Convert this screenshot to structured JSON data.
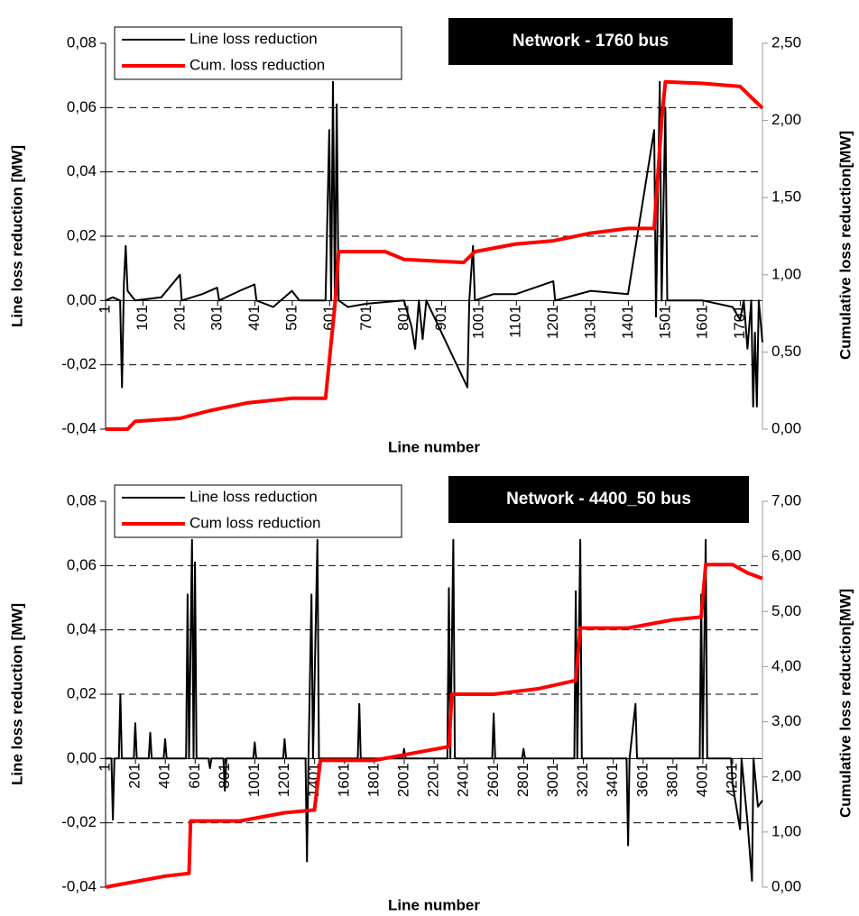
{
  "chart_data": [
    {
      "type": "line",
      "title": "Network - 1760 bus",
      "x_label": "Line number",
      "y_label": "Line loss reduction [MW]",
      "y2_label": "Cumulative loss reduction[MW]",
      "xlim": [
        1,
        1760
      ],
      "xticks": [
        1,
        101,
        201,
        301,
        401,
        501,
        601,
        701,
        801,
        901,
        1001,
        1101,
        1201,
        1301,
        1401,
        1501,
        1601,
        1701
      ],
      "ylim": [
        -0.04,
        0.08
      ],
      "yticks": [
        {
          "value": -0.04,
          "label": "-0,04"
        },
        {
          "value": -0.02,
          "label": "-0,02"
        },
        {
          "value": 0,
          "label": "0,00"
        },
        {
          "value": 0.02,
          "label": "0,02"
        },
        {
          "value": 0.04,
          "label": "0,04"
        },
        {
          "value": 0.06,
          "label": "0,06"
        },
        {
          "value": 0.08,
          "label": "0,08"
        }
      ],
      "y2lim": [
        0,
        2.5
      ],
      "y2ticks": [
        {
          "value": 0,
          "label": "0,00"
        },
        {
          "value": 0.5,
          "label": "0,50"
        },
        {
          "value": 1,
          "label": "1,00"
        },
        {
          "value": 1.5,
          "label": "1,50"
        },
        {
          "value": 2,
          "label": "2,00"
        },
        {
          "value": 2.5,
          "label": "2,50"
        }
      ],
      "grid": true,
      "series": [
        {
          "name": "Line loss reduction",
          "color": "#000000",
          "x": [
            1,
            20,
            40,
            45,
            50,
            55,
            60,
            80,
            150,
            200,
            205,
            260,
            300,
            305,
            360,
            400,
            405,
            450,
            500,
            520,
            590,
            600,
            605,
            610,
            615,
            620,
            625,
            650,
            700,
            800,
            820,
            830,
            840,
            850,
            860,
            970,
            975,
            985,
            990,
            1040,
            1100,
            1150,
            1200,
            1205,
            1300,
            1400,
            1470,
            1475,
            1485,
            1490,
            1500,
            1505,
            1600,
            1680,
            1700,
            1710,
            1720,
            1730,
            1735,
            1740,
            1745,
            1750,
            1760
          ],
          "values": [
            0,
            0.001,
            0,
            -0.027,
            0.005,
            0.017,
            0.003,
            0,
            0.001,
            0.008,
            0,
            0.002,
            0.004,
            0,
            0.003,
            0.005,
            0,
            -0.002,
            0.003,
            0,
            0,
            0.053,
            0,
            0.068,
            0,
            0.061,
            0,
            -0.002,
            -0.001,
            0,
            -0.008,
            -0.015,
            0,
            -0.012,
            0,
            -0.027,
            0,
            0.017,
            0,
            0.002,
            0.002,
            0.004,
            0.006,
            0,
            0.003,
            0.002,
            0.053,
            -0.005,
            0.068,
            0,
            0.06,
            0,
            0,
            -0.002,
            -0.006,
            0,
            -0.015,
            0,
            -0.033,
            -0.01,
            -0.033,
            0,
            -0.013
          ]
        },
        {
          "name": "Cum. loss reduction",
          "color": "#ff0000",
          "axis": "y2",
          "x": [
            1,
            60,
            80,
            200,
            280,
            380,
            500,
            590,
            615,
            625,
            750,
            800,
            960,
            990,
            1100,
            1200,
            1300,
            1400,
            1470,
            1490,
            1500,
            1600,
            1700,
            1760
          ],
          "values": [
            0,
            0,
            0.05,
            0.07,
            0.12,
            0.17,
            0.2,
            0.2,
            0.8,
            1.15,
            1.15,
            1.1,
            1.08,
            1.15,
            1.2,
            1.22,
            1.27,
            1.3,
            1.3,
            2.0,
            2.25,
            2.24,
            2.22,
            2.08
          ]
        }
      ]
    },
    {
      "type": "line",
      "title": "Network - 4400_50 bus",
      "x_label": "Line number",
      "y_label": "Line loss reduction [MW]",
      "y2_label": "Cumulative loss reduction[MW]",
      "xlim": [
        1,
        4400
      ],
      "xticks": [
        1,
        201,
        401,
        601,
        801,
        1001,
        1201,
        1401,
        1601,
        1801,
        2001,
        2201,
        2401,
        2601,
        2801,
        3001,
        3201,
        3401,
        3601,
        3801,
        4001,
        4201
      ],
      "ylim": [
        -0.04,
        0.08
      ],
      "yticks": [
        {
          "value": -0.04,
          "label": "-0,04"
        },
        {
          "value": -0.02,
          "label": "-0,02"
        },
        {
          "value": 0,
          "label": "0,00"
        },
        {
          "value": 0.02,
          "label": "0,02"
        },
        {
          "value": 0.04,
          "label": "0,04"
        },
        {
          "value": 0.06,
          "label": "0,06"
        },
        {
          "value": 0.08,
          "label": "0,08"
        }
      ],
      "y2lim": [
        0,
        7
      ],
      "y2ticks": [
        {
          "value": 0,
          "label": "0,00"
        },
        {
          "value": 1,
          "label": "1,00"
        },
        {
          "value": 2,
          "label": "2,00"
        },
        {
          "value": 3,
          "label": "3,00"
        },
        {
          "value": 4,
          "label": "4,00"
        },
        {
          "value": 5,
          "label": "5,00"
        },
        {
          "value": 6,
          "label": "6,00"
        },
        {
          "value": 7,
          "label": "7,00"
        }
      ],
      "grid": true,
      "series": [
        {
          "name": "Line loss reduction",
          "color": "#000000",
          "x": [
            1,
            40,
            50,
            60,
            90,
            100,
            110,
            190,
            200,
            210,
            290,
            300,
            310,
            390,
            400,
            410,
            540,
            550,
            560,
            580,
            590,
            600,
            610,
            690,
            700,
            710,
            790,
            800,
            810,
            990,
            1000,
            1010,
            1190,
            1200,
            1210,
            1340,
            1350,
            1360,
            1380,
            1390,
            1420,
            1430,
            1690,
            1700,
            1710,
            1990,
            2000,
            2010,
            2290,
            2300,
            2310,
            2330,
            2340,
            2590,
            2600,
            2610,
            2790,
            2800,
            2810,
            3140,
            3150,
            3160,
            3180,
            3190,
            3490,
            3500,
            3510,
            3550,
            3560,
            3980,
            3990,
            4000,
            4020,
            4030,
            4190,
            4200,
            4250,
            4260,
            4300,
            4330,
            4340,
            4370,
            4400
          ],
          "values": [
            0,
            0,
            -0.019,
            0,
            0,
            0.02,
            0,
            0,
            0.011,
            0,
            0,
            0.008,
            0,
            0,
            0.006,
            0,
            0,
            0.051,
            0,
            0.068,
            0,
            0.061,
            0,
            0,
            -0.003,
            0,
            0,
            -0.01,
            0,
            0,
            0.005,
            0,
            0,
            0.006,
            0,
            0,
            -0.032,
            0,
            0.051,
            0,
            0.068,
            0,
            0,
            0.017,
            0,
            0,
            0.003,
            0,
            0,
            0.053,
            0,
            0.068,
            0,
            0,
            0.014,
            0,
            0,
            0.003,
            0,
            0,
            0.052,
            0,
            0.068,
            0,
            0,
            -0.027,
            0,
            0.017,
            0,
            0,
            0.051,
            0,
            0.068,
            0,
            0,
            -0.008,
            -0.022,
            0,
            -0.02,
            -0.038,
            0,
            -0.015,
            -0.013
          ]
        },
        {
          "name": "Cum loss reduction",
          "color": "#ff0000",
          "axis": "y2",
          "x": [
            1,
            100,
            400,
            560,
            570,
            900,
            1200,
            1400,
            1440,
            1800,
            2100,
            2300,
            2320,
            2600,
            2900,
            3150,
            3180,
            3500,
            3800,
            3990,
            4020,
            4200,
            4300,
            4400
          ],
          "values": [
            0,
            0.05,
            0.2,
            0.25,
            1.2,
            1.2,
            1.35,
            1.4,
            2.3,
            2.3,
            2.45,
            2.55,
            3.5,
            3.5,
            3.6,
            3.75,
            4.7,
            4.7,
            4.85,
            4.9,
            5.85,
            5.85,
            5.7,
            5.6
          ]
        }
      ]
    }
  ]
}
